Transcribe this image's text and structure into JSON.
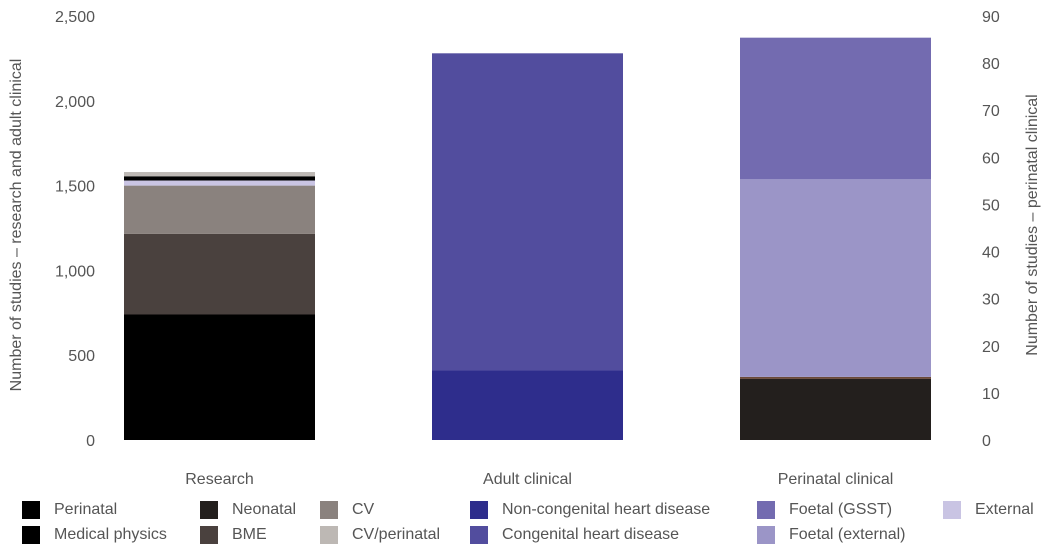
{
  "chart_data": {
    "type": "bar",
    "stacked": true,
    "categories": [
      "Research",
      "Adult clinical",
      "Perinatal clinical"
    ],
    "ylabel_left": "Number of studies – research and adult clinical",
    "ylabel_right": "Number of studies – perinatal clinical",
    "ylim_left": [
      0,
      2500
    ],
    "ylim_right": [
      0,
      90
    ],
    "yticks_left": [
      "0",
      "500",
      "1,000",
      "1,500",
      "2,000",
      "2,500"
    ],
    "yticks_right": [
      "0",
      "10",
      "20",
      "30",
      "40",
      "50",
      "60",
      "70",
      "80",
      "90"
    ],
    "grid": false,
    "legend_position": "bottom",
    "series": [
      {
        "name": "Perinatal",
        "color": "#000000",
        "stack": "Research",
        "axis": "left",
        "value": 25
      },
      {
        "name": "Medical physics",
        "color": "#000000",
        "stack": "Research",
        "axis": "left",
        "value": 740
      },
      {
        "name": "Neonatal",
        "color": "#231f1d",
        "stack": "Perinatal clinical",
        "axis": "right",
        "value": 13
      },
      {
        "name": "BME",
        "color": "#4a413e",
        "stack": "Research",
        "axis": "left",
        "value": 475
      },
      {
        "name": "CV",
        "color": "#8a827e",
        "stack": "Research",
        "axis": "left",
        "value": 285
      },
      {
        "name": "CV/perinatal",
        "color": "#bdb8b4",
        "stack": "Research",
        "axis": "left",
        "value": 25
      },
      {
        "name": "Non-congenital heart disease",
        "color": "#2e2d8c",
        "stack": "Adult clinical",
        "axis": "left",
        "value": 410
      },
      {
        "name": "Congenital heart disease",
        "color": "#524d9e",
        "stack": "Adult clinical",
        "axis": "left",
        "value": 1870
      },
      {
        "name": "Foetal (GSST)",
        "color": "#736bb0",
        "stack": "Perinatal clinical",
        "axis": "right",
        "value": 30
      },
      {
        "name": "Foetal (external)",
        "color": "#9b95c7",
        "stack": "Perinatal clinical",
        "axis": "right",
        "value": 42
      },
      {
        "name": "External",
        "color": "#c9c4e3",
        "stack": "Research",
        "axis": "left",
        "value": 30
      }
    ],
    "stack_order": {
      "Research": [
        "Medical physics",
        "BME",
        "CV",
        "External",
        "Perinatal",
        "CV/perinatal"
      ],
      "Adult clinical": [
        "Non-congenital heart disease",
        "Congenital heart disease"
      ],
      "Perinatal clinical": [
        "Neonatal",
        "Foetal (external)",
        "Foetal (GSST)"
      ]
    },
    "perinatal_divider": {
      "color": "#6b4a3a",
      "value": 0.4
    },
    "legend": [
      [
        "Perinatal",
        "Neonatal",
        "CV",
        "Non-congenital heart disease",
        "Foetal (GSST)",
        "External"
      ],
      [
        "Medical physics",
        "BME",
        "CV/perinatal",
        "Congenital heart disease",
        "Foetal (external)"
      ]
    ]
  }
}
